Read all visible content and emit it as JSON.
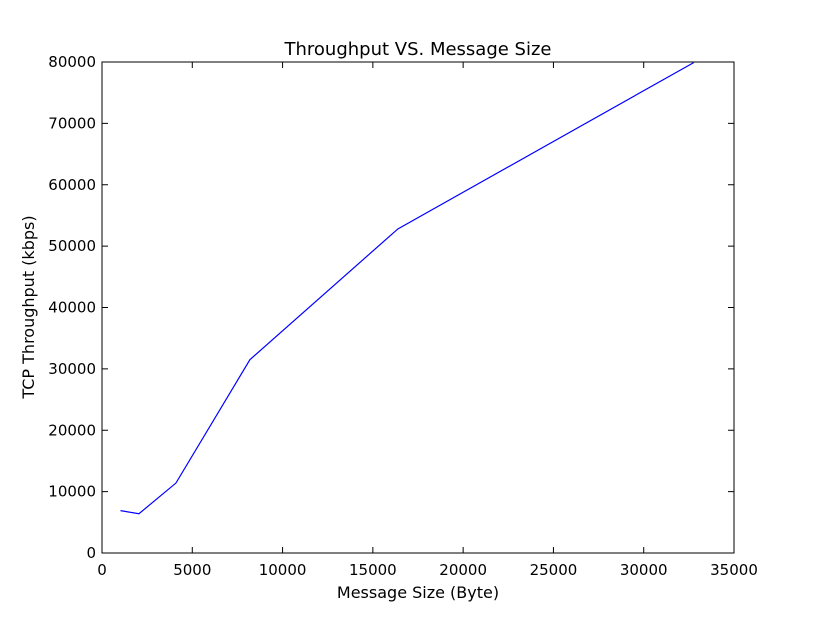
{
  "chart_data": {
    "type": "line",
    "title": "Throughput VS. Message Size",
    "xlabel": "Message Size (Byte)",
    "ylabel": "TCP Throughput (kbps)",
    "xlim": [
      0,
      35000
    ],
    "ylim": [
      0,
      80000
    ],
    "x_ticks": [
      0,
      5000,
      10000,
      15000,
      20000,
      25000,
      30000,
      35000
    ],
    "y_ticks": [
      0,
      10000,
      20000,
      30000,
      40000,
      50000,
      60000,
      70000,
      80000
    ],
    "grid": false,
    "legend": "none",
    "series": [
      {
        "color": "#0000ff",
        "x": [
          1024,
          2048,
          4096,
          8192,
          16384,
          32768
        ],
        "y": [
          6900,
          6400,
          11400,
          31500,
          52800,
          79900
        ]
      }
    ]
  }
}
